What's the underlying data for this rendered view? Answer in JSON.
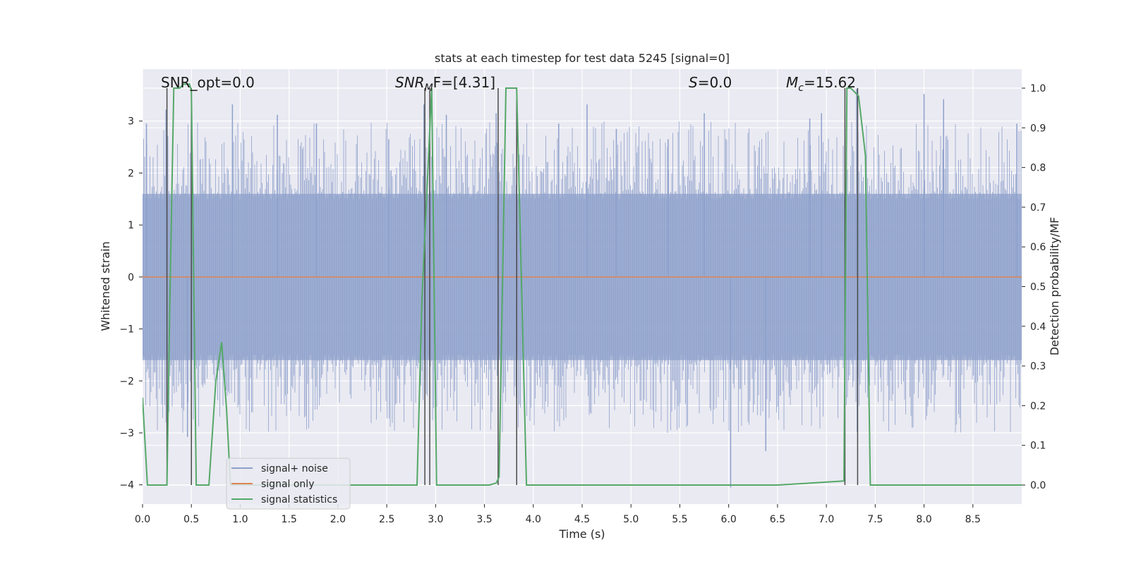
{
  "chart_data": {
    "type": "line",
    "title": "stats at each timestep for test data 5245 [signal=0]",
    "xlabel": "Time (s)",
    "ylabel": "Whitened strain",
    "y2label": "Detection probability/MF",
    "xlim": [
      0.0,
      9.0
    ],
    "ylim": [
      -4.37,
      4.0
    ],
    "y2lim": [
      -0.048,
      1.048
    ],
    "xticks": [
      "0.0",
      "0.5",
      "1.0",
      "1.5",
      "2.0",
      "2.5",
      "3.0",
      "3.5",
      "4.0",
      "4.5",
      "5.0",
      "5.5",
      "6.0",
      "6.5",
      "7.0",
      "7.5",
      "8.0",
      "8.5"
    ],
    "yticks": [
      "3",
      "2",
      "1",
      "0",
      "−1",
      "−2",
      "−3",
      "−4"
    ],
    "yticks_values": [
      3,
      2,
      1,
      0,
      -1,
      -2,
      -3,
      -4
    ],
    "y2ticks": [
      "1.0",
      "0.9",
      "0.8",
      "0.7",
      "0.6",
      "0.5",
      "0.4",
      "0.3",
      "0.2",
      "0.1",
      "0.0"
    ],
    "y2ticks_values": [
      1.0,
      0.9,
      0.8,
      0.7,
      0.6,
      0.5,
      0.4,
      0.3,
      0.2,
      0.1,
      0.0
    ],
    "annotations": {
      "snr_opt_label": "SNR_opt=0.0",
      "snr_mf_sym": "SNR",
      "snr_mf_sub": "M",
      "snr_mf_rest": "F=[4.31]",
      "s_sym": "S",
      "s_rest": "=0.0",
      "mc_sym": "M",
      "mc_sub": "c",
      "mc_rest": "=15.62"
    },
    "legend": {
      "placement": "lower-left",
      "entries": [
        "signal+ noise",
        "signal only",
        "signal statistics"
      ]
    },
    "colors": {
      "noise": "#8da0cb",
      "signal_only": "#dd8452",
      "statistics": "#55a868",
      "markers": "#4a4a4a",
      "plot_bg": "#eaeaf2",
      "grid": "#ffffff"
    },
    "series": [
      {
        "name": "signal+ noise",
        "description_type": "noise",
        "amplitude_core": [
          -1.6,
          1.6
        ],
        "spike_x": [
          0.04,
          0.24,
          0.46,
          0.92,
          1.38,
          1.78,
          2.52,
          2.88,
          3.11,
          3.62,
          4.26,
          4.55,
          4.85,
          5.38,
          5.75,
          6.02,
          6.38,
          6.83,
          6.95,
          7.31,
          8.0,
          8.2,
          8.95
        ],
        "spike_y": [
          2.95,
          3.22,
          -3.08,
          3.32,
          3.12,
          2.95,
          2.65,
          3.32,
          3.12,
          3.15,
          2.95,
          3.32,
          2.85,
          2.65,
          3.15,
          -4.05,
          -3.35,
          3.05,
          3.15,
          3.62,
          3.52,
          3.42,
          2.95
        ]
      },
      {
        "name": "signal only",
        "x": [
          0.0,
          9.0
        ],
        "y": [
          0.0,
          0.0
        ]
      },
      {
        "name": "signal statistics",
        "x": [
          0.0,
          0.05,
          0.25,
          0.28,
          0.32,
          0.38,
          0.42,
          0.48,
          0.5,
          0.55,
          0.68,
          0.75,
          0.81,
          0.86,
          0.9,
          0.95,
          2.5,
          2.81,
          2.86,
          2.96,
          3.01,
          3.08,
          3.55,
          3.62,
          3.65,
          3.72,
          3.83,
          3.93,
          4.5,
          5.5,
          6.5,
          7.18,
          7.21,
          7.25,
          7.33,
          7.4,
          7.45,
          7.6,
          7.9,
          8.2,
          8.5,
          8.8,
          9.0
        ],
        "y": [
          0.22,
          0.0,
          0.0,
          0.47,
          1.0,
          1.0,
          1.01,
          1.01,
          0.995,
          0.0,
          0.0,
          0.26,
          0.36,
          0.19,
          0.0,
          0.0,
          0.0,
          0.0,
          0.47,
          1.0,
          0.0,
          0.0,
          0.0,
          0.005,
          0.02,
          1.0,
          1.0,
          0.0,
          0.0,
          0.0,
          0.0,
          0.01,
          1.0,
          1.0,
          0.98,
          0.83,
          0.0,
          0.0,
          0.0,
          0.0,
          0.0,
          0.0,
          0.0
        ]
      }
    ],
    "detection_markers_x": [
      0.25,
      0.5,
      2.89,
      2.94,
      3.64,
      3.83,
      7.19,
      7.32
    ]
  }
}
